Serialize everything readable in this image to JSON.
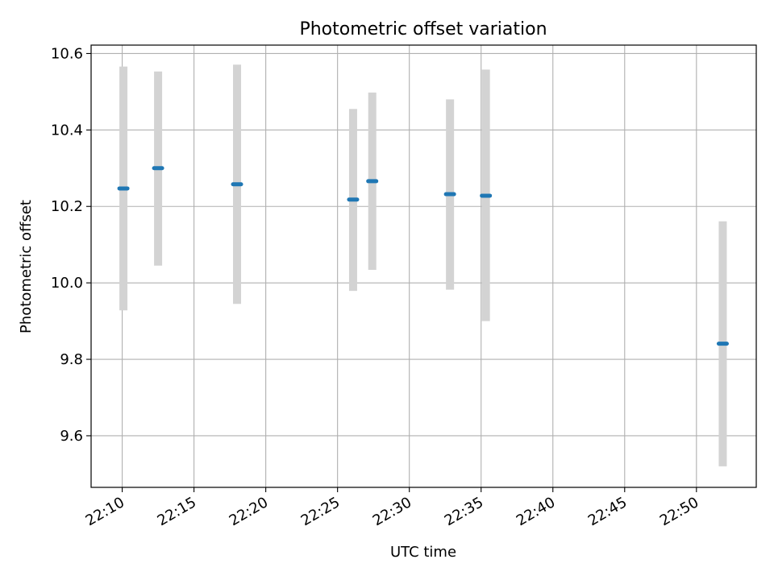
{
  "chart_data": {
    "type": "scatter",
    "title": "Photometric offset variation",
    "xlabel": "UTC time",
    "ylabel": "Photometric offset",
    "grid": true,
    "legend": "none",
    "xlim": [
      "22:07:50",
      "22:54:10"
    ],
    "ylim": [
      9.465,
      10.622
    ],
    "xticks": [
      "22:10",
      "22:15",
      "22:20",
      "22:25",
      "22:30",
      "22:35",
      "22:40",
      "22:45",
      "22:50"
    ],
    "yticks": [
      9.6,
      9.8,
      10.0,
      10.2,
      10.4,
      10.6
    ],
    "series": [
      {
        "color": "#1f77b4",
        "errorbar_color": "#d3d3d3",
        "points": [
          {
            "x": "22:10:05",
            "y": 10.247,
            "low": 9.928,
            "high": 10.566
          },
          {
            "x": "22:12:30",
            "y": 10.3,
            "low": 10.045,
            "high": 10.553
          },
          {
            "x": "22:18:00",
            "y": 10.258,
            "low": 9.945,
            "high": 10.571
          },
          {
            "x": "22:26:05",
            "y": 10.218,
            "low": 9.979,
            "high": 10.455
          },
          {
            "x": "22:27:25",
            "y": 10.266,
            "low": 10.034,
            "high": 10.498
          },
          {
            "x": "22:32:50",
            "y": 10.232,
            "low": 9.982,
            "high": 10.48
          },
          {
            "x": "22:35:20",
            "y": 10.228,
            "low": 9.9,
            "high": 10.558
          },
          {
            "x": "22:51:50",
            "y": 9.841,
            "low": 9.52,
            "high": 10.161
          }
        ]
      }
    ]
  }
}
